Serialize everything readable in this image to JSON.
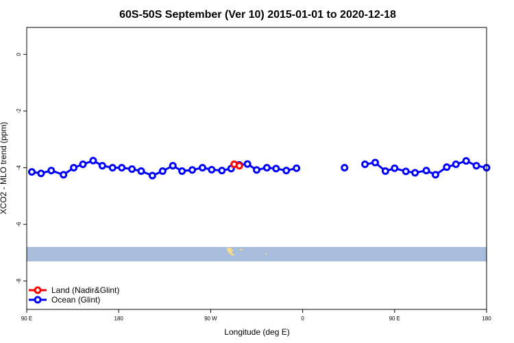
{
  "chart_data": {
    "type": "line",
    "title": "60S-50S September (Ver 10)   2015-01-01 to 2020-12-18",
    "xlabel": "Longitude (deg E)",
    "ylabel": "XCO2 - MLO trend (ppm)",
    "xlim": [
      90,
      540
    ],
    "ylim": [
      -9.0,
      0.95
    ],
    "x_ticks": [
      {
        "value": 90,
        "label": "90 E"
      },
      {
        "value": 180,
        "label": "180"
      },
      {
        "value": 270,
        "label": "90 W"
      },
      {
        "value": 360,
        "label": "0"
      },
      {
        "value": 450,
        "label": "90 E"
      },
      {
        "value": 540,
        "label": "180"
      }
    ],
    "y_ticks": [
      {
        "value": 0,
        "label": "0"
      },
      {
        "value": -2,
        "label": "-2"
      },
      {
        "value": -4,
        "label": "-4"
      },
      {
        "value": -6,
        "label": "-6"
      },
      {
        "value": -8,
        "label": "-8"
      }
    ],
    "grid": false,
    "legend_position": "bottom-left",
    "map_band": {
      "lat_range": "60S-50S",
      "ocean_color": "#a7bddb",
      "land_color": "#f2d98a"
    },
    "series": [
      {
        "name": "Ocean (Glint)",
        "color": "#0000ff",
        "x": [
          95,
          104,
          114,
          126,
          136,
          145,
          155,
          164,
          174,
          183,
          193,
          202,
          213,
          223,
          233,
          242,
          252,
          262,
          271,
          281,
          290,
          298,
          306,
          315,
          325,
          334,
          344,
          354,
          363,
          null,
          401,
          null,
          421,
          431,
          441,
          450,
          461,
          470,
          481,
          490,
          501,
          510,
          520,
          530,
          540
        ],
        "y": [
          -4.15,
          -4.2,
          -4.1,
          -4.25,
          -4.0,
          -3.88,
          -3.75,
          -3.93,
          -4.0,
          -4.0,
          -4.05,
          -4.12,
          -4.28,
          -4.12,
          -3.93,
          -4.12,
          -4.08,
          -4.0,
          -4.07,
          -4.1,
          -4.03,
          -3.9,
          -3.87,
          -4.08,
          -4.0,
          -4.03,
          -4.1,
          -4.02,
          null,
          null,
          -4.0,
          null,
          -3.88,
          -3.82,
          -4.12,
          -4.02,
          -4.13,
          -4.18,
          -4.1,
          -4.25,
          -3.98,
          -3.88,
          -3.76,
          -3.93,
          -4.0
        ]
      },
      {
        "name": "Land (Nadir&Glint)",
        "color": "#ff0000",
        "x": [
          293,
          298
        ],
        "y": [
          -3.88,
          -3.93
        ]
      }
    ]
  }
}
